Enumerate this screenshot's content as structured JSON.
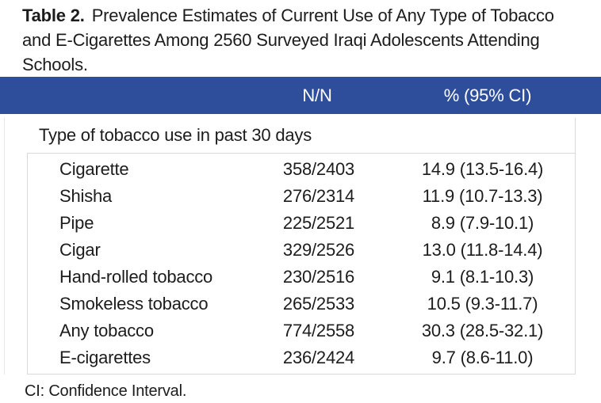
{
  "caption": {
    "label": "Table 2.",
    "line1": "Prevalence Estimates of Current Use of Any Type of Tobacco",
    "line2": "and E-Cigarettes Among 2560 Surveyed Iraqi Adolescents Attending",
    "line3": "Schools."
  },
  "header": {
    "col_nn": "N/N",
    "col_pct": "% (95% CI)"
  },
  "section": {
    "title": "Type of tobacco use in past 30 days"
  },
  "rows": [
    {
      "label": "Cigarette",
      "nn": "358/2403",
      "pct": "14.9 (13.5-16.4)"
    },
    {
      "label": "Shisha",
      "nn": "276/2314",
      "pct": "11.9 (10.7-13.3)"
    },
    {
      "label": "Pipe",
      "nn": "225/2521",
      "pct": "8.9 (7.9-10.1)"
    },
    {
      "label": "Cigar",
      "nn": "329/2526",
      "pct": "13.0 (11.8-14.4)"
    },
    {
      "label": "Hand-rolled tobacco",
      "nn": "230/2516",
      "pct": "9.1 (8.1-10.3)"
    },
    {
      "label": "Smokeless tobacco",
      "nn": "265/2533",
      "pct": "10.5 (9.3-11.7)"
    },
    {
      "label": "Any tobacco",
      "nn": "774/2558",
      "pct": "30.3 (28.5-32.1)"
    },
    {
      "label": "E-cigarettes",
      "nn": "236/2424",
      "pct": "9.7 (8.6-11.0)"
    }
  ],
  "footnote": "CI: Confidence Interval.",
  "colors": {
    "header_bg": "#2e4e9c",
    "header_text": "#ffffff",
    "border": "#d9d9d9",
    "text": "#1c1c1c"
  },
  "chart_data": {
    "type": "table",
    "title": "Table 2. Prevalence Estimates of Current Use of Any Type of Tobacco and E-Cigarettes Among 2560 Surveyed Iraqi Adolescents Attending Schools.",
    "columns": [
      "",
      "N/N",
      "% (95% CI)"
    ],
    "section": "Type of tobacco use in past 30 days",
    "rows": [
      [
        "Cigarette",
        "358/2403",
        "14.9 (13.5-16.4)"
      ],
      [
        "Shisha",
        "276/2314",
        "11.9 (10.7-13.3)"
      ],
      [
        "Pipe",
        "225/2521",
        "8.9 (7.9-10.1)"
      ],
      [
        "Cigar",
        "329/2526",
        "13.0 (11.8-14.4)"
      ],
      [
        "Hand-rolled tobacco",
        "230/2516",
        "9.1 (8.1-10.3)"
      ],
      [
        "Smokeless tobacco",
        "265/2533",
        "10.5 (9.3-11.7)"
      ],
      [
        "Any tobacco",
        "774/2558",
        "30.3 (28.5-32.1)"
      ],
      [
        "E-cigarettes",
        "236/2424",
        "9.7 (8.6-11.0)"
      ]
    ],
    "footnote": "CI: Confidence Interval."
  }
}
